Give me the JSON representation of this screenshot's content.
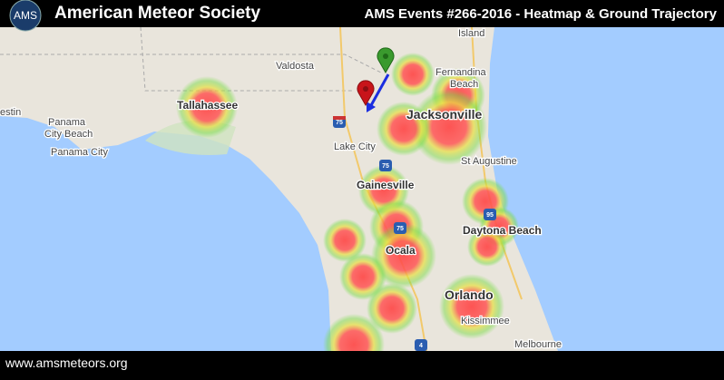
{
  "header": {
    "logo": "AMS",
    "title": "American Meteor Society",
    "event": "AMS Events #266-2016 - Heatmap & Ground Trajectory"
  },
  "footer": {
    "url": "www.amsmeteors.org"
  },
  "map": {
    "labels": [
      "Island",
      "Fernandina",
      "Beach",
      "Valdosta",
      "Tallahassee",
      "estin",
      "Panama",
      "City Beach",
      "Panama City",
      "Lake City",
      "Jacksonville",
      "St Augustine",
      "Gainesville",
      "Daytona Beach",
      "Ocala",
      "Orlando",
      "Kissimmee",
      "Melbourne"
    ],
    "shields": [
      "75",
      "75",
      "95",
      "75",
      "4"
    ]
  }
}
